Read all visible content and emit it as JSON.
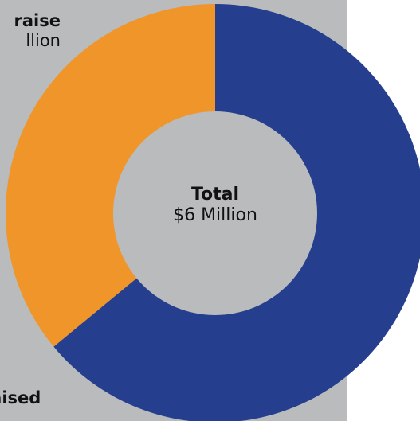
{
  "chart_data": {
    "type": "pie",
    "style": "donut",
    "center": {
      "title": "Total",
      "value": "$6 Million"
    },
    "slices": [
      {
        "name": "Raised",
        "value": 0.64,
        "color": "#253f8e",
        "label_head": "Raised",
        "label_sub": ""
      },
      {
        "name": "To raise",
        "value": 0.36,
        "color": "#f0952a",
        "label_head": "raise",
        "label_sub": "llion"
      }
    ]
  },
  "colors": {
    "panel": "#b9bbbd",
    "hole": "#b9bbbd",
    "raised": "#253f8e",
    "to_raise": "#f0952a"
  }
}
